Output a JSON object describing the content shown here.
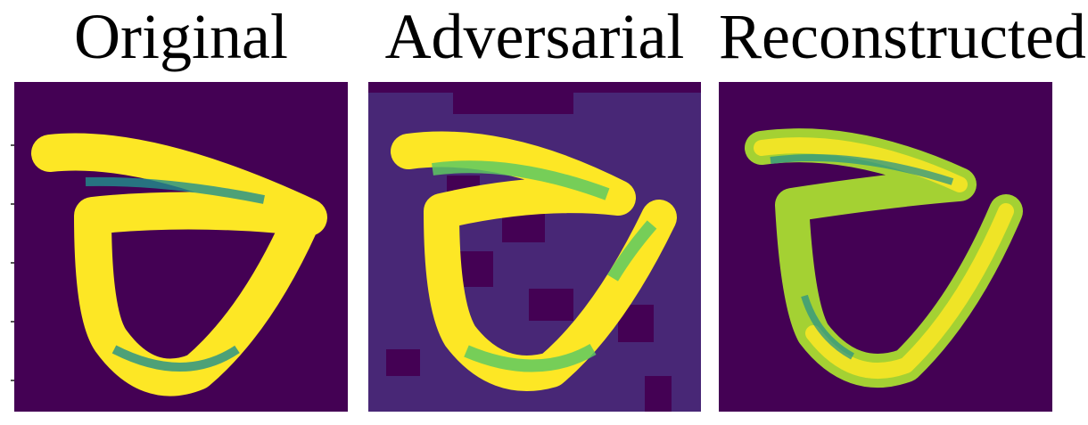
{
  "figure": {
    "panels": [
      {
        "id": "original",
        "title": "Original"
      },
      {
        "id": "adversarial",
        "title": "Adversarial"
      },
      {
        "id": "reconstructed",
        "title": "Reconstructed"
      }
    ]
  },
  "colors": {
    "dark": "#440154",
    "adv_background": "#482776",
    "teal": "#21908c",
    "green": "#5ec962",
    "lime": "#aadc32",
    "yellow": "#fde725"
  }
}
